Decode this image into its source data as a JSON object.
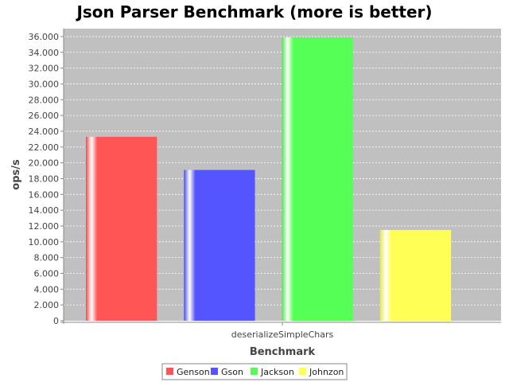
{
  "chart_data": {
    "type": "bar",
    "title": "Json Parser Benchmark (more is better)",
    "xlabel": "Benchmark",
    "ylabel": "ops/s",
    "categories": [
      "deserializeSimpleChars"
    ],
    "series": [
      {
        "name": "Genson",
        "values": [
          23300
        ],
        "color": "#ff5555"
      },
      {
        "name": "Gson",
        "values": [
          19100
        ],
        "color": "#5555ff"
      },
      {
        "name": "Jackson",
        "values": [
          35900
        ],
        "color": "#55ff55"
      },
      {
        "name": "Johnzon",
        "values": [
          11500
        ],
        "color": "#ffff55"
      }
    ],
    "ylim": [
      0,
      37000
    ],
    "yticks": [
      0,
      2000,
      4000,
      6000,
      8000,
      10000,
      12000,
      14000,
      16000,
      18000,
      20000,
      22000,
      24000,
      26000,
      28000,
      30000,
      32000,
      34000,
      36000
    ],
    "ytick_labels": [
      "0",
      "2.000",
      "4.000",
      "6.000",
      "8.000",
      "10.000",
      "12.000",
      "14.000",
      "16.000",
      "18.000",
      "20.000",
      "22.000",
      "24.000",
      "26.000",
      "28.000",
      "30.000",
      "32.000",
      "34.000",
      "36.000"
    ],
    "grid": true,
    "legend": "bottom",
    "plot_background": "#c0c0c0"
  }
}
